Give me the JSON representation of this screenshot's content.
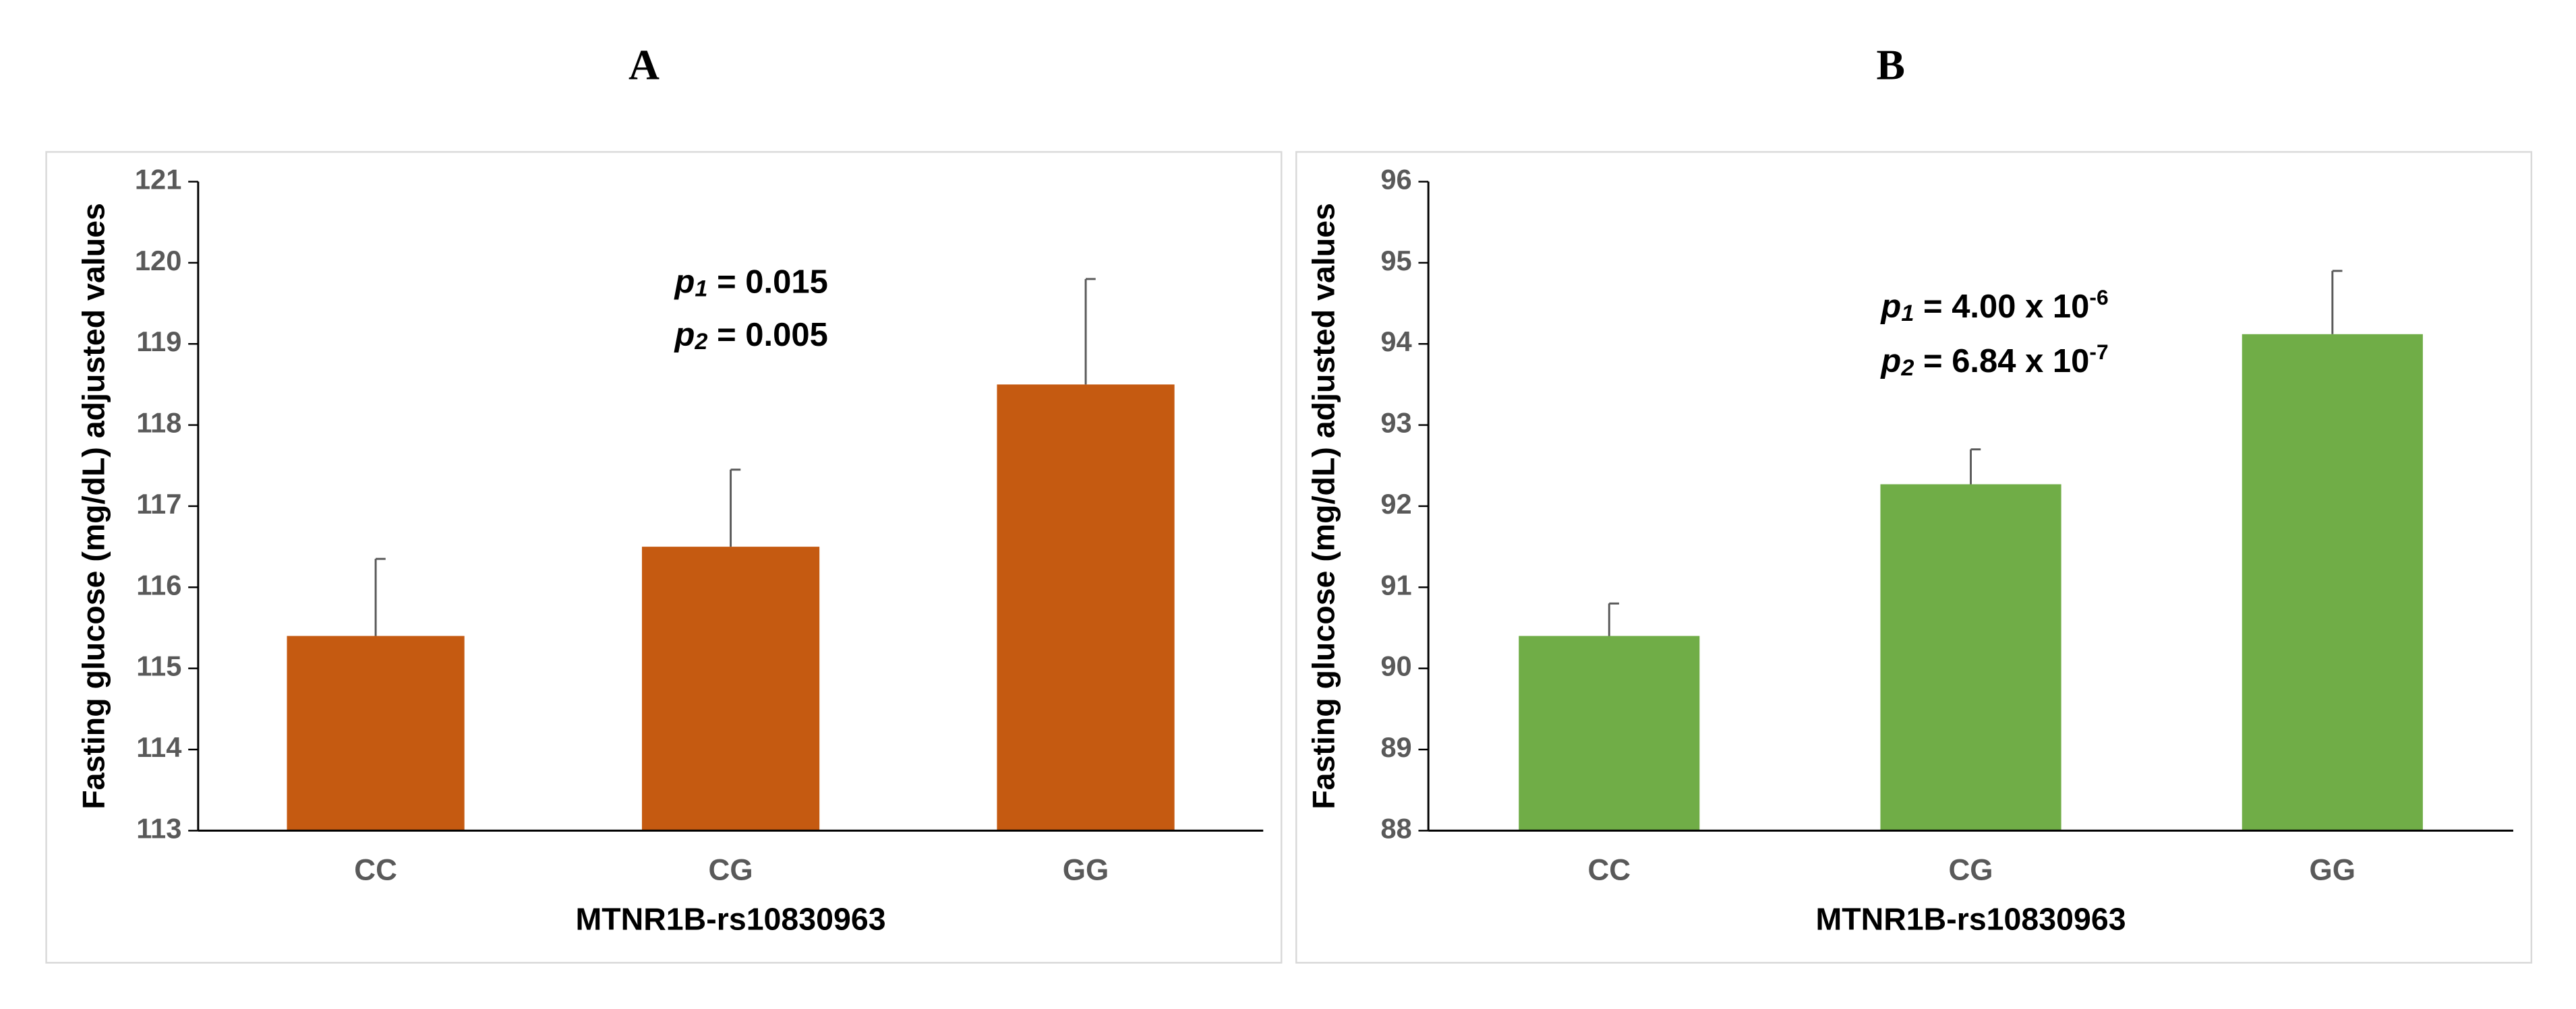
{
  "chart_data": [
    {
      "type": "bar",
      "title": "A",
      "categories": [
        "CC",
        "CG",
        "GG"
      ],
      "values": [
        115.4,
        116.5,
        118.5
      ],
      "errors": [
        0.95,
        0.95,
        1.3
      ],
      "color": "#c55a11",
      "ylim": [
        113,
        121
      ],
      "yticks": [
        113,
        114,
        115,
        116,
        117,
        118,
        119,
        120,
        121
      ],
      "x_label": "MTNR1B-rs10830963",
      "y_label": "Fasting glucose (mg/dL) adjusted values",
      "annotations": [
        {
          "variable": "p",
          "subscript": "1",
          "text": " = 0.015"
        },
        {
          "variable": "p",
          "subscript": "2",
          "text": " = 0.005"
        }
      ]
    },
    {
      "type": "bar",
      "title": "B",
      "categories": [
        "CC",
        "CG",
        "GG"
      ],
      "values": [
        90.4,
        92.27,
        94.12
      ],
      "errors": [
        0.4,
        0.43,
        0.78
      ],
      "color": "#70ad47",
      "ylim": [
        88,
        96
      ],
      "yticks": [
        88,
        89,
        90,
        91,
        92,
        93,
        94,
        95,
        96
      ],
      "x_label": "MTNR1B-rs10830963",
      "y_label": "Fasting glucose (mg/dL) adjusted values",
      "annotations": [
        {
          "variable": "p",
          "subscript": "1",
          "text": " = 4.00 x 10",
          "superscript": "-6"
        },
        {
          "variable": "p",
          "subscript": "2",
          "text": " = 6.84 x 10",
          "superscript": "-7"
        }
      ]
    }
  ]
}
